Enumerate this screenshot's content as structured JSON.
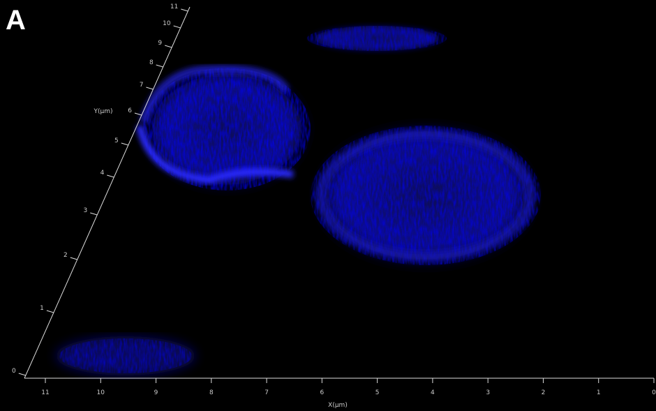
{
  "panel_label": "A",
  "x_axis": {
    "label": "X(µm)",
    "ticks": [
      11,
      10,
      9,
      8,
      7,
      6,
      5,
      4,
      3,
      2,
      1,
      0
    ]
  },
  "y_axis": {
    "label": "Y(µm)",
    "ticks": [
      0,
      1,
      2,
      3,
      4,
      5,
      6,
      7,
      8,
      9,
      10,
      11
    ]
  }
}
